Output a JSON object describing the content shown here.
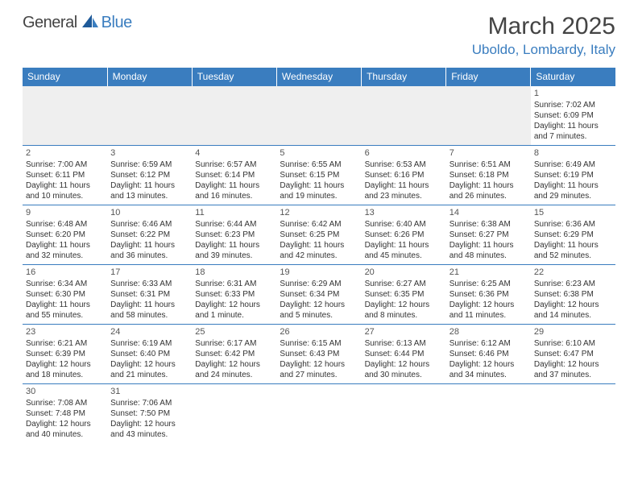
{
  "logo": {
    "general": "General",
    "blue": "Blue"
  },
  "title": "March 2025",
  "location": "Uboldo, Lombardy, Italy",
  "dayHeaders": [
    "Sunday",
    "Monday",
    "Tuesday",
    "Wednesday",
    "Thursday",
    "Friday",
    "Saturday"
  ],
  "colors": {
    "headerBg": "#3a7dbf",
    "headerText": "#ffffff",
    "accent": "#3a7dbf",
    "blankBg": "#efefef"
  },
  "weeks": [
    [
      null,
      null,
      null,
      null,
      null,
      null,
      {
        "n": "1",
        "sr": "Sunrise: 7:02 AM",
        "ss": "Sunset: 6:09 PM",
        "d1": "Daylight: 11 hours",
        "d2": "and 7 minutes."
      }
    ],
    [
      {
        "n": "2",
        "sr": "Sunrise: 7:00 AM",
        "ss": "Sunset: 6:11 PM",
        "d1": "Daylight: 11 hours",
        "d2": "and 10 minutes."
      },
      {
        "n": "3",
        "sr": "Sunrise: 6:59 AM",
        "ss": "Sunset: 6:12 PM",
        "d1": "Daylight: 11 hours",
        "d2": "and 13 minutes."
      },
      {
        "n": "4",
        "sr": "Sunrise: 6:57 AM",
        "ss": "Sunset: 6:14 PM",
        "d1": "Daylight: 11 hours",
        "d2": "and 16 minutes."
      },
      {
        "n": "5",
        "sr": "Sunrise: 6:55 AM",
        "ss": "Sunset: 6:15 PM",
        "d1": "Daylight: 11 hours",
        "d2": "and 19 minutes."
      },
      {
        "n": "6",
        "sr": "Sunrise: 6:53 AM",
        "ss": "Sunset: 6:16 PM",
        "d1": "Daylight: 11 hours",
        "d2": "and 23 minutes."
      },
      {
        "n": "7",
        "sr": "Sunrise: 6:51 AM",
        "ss": "Sunset: 6:18 PM",
        "d1": "Daylight: 11 hours",
        "d2": "and 26 minutes."
      },
      {
        "n": "8",
        "sr": "Sunrise: 6:49 AM",
        "ss": "Sunset: 6:19 PM",
        "d1": "Daylight: 11 hours",
        "d2": "and 29 minutes."
      }
    ],
    [
      {
        "n": "9",
        "sr": "Sunrise: 6:48 AM",
        "ss": "Sunset: 6:20 PM",
        "d1": "Daylight: 11 hours",
        "d2": "and 32 minutes."
      },
      {
        "n": "10",
        "sr": "Sunrise: 6:46 AM",
        "ss": "Sunset: 6:22 PM",
        "d1": "Daylight: 11 hours",
        "d2": "and 36 minutes."
      },
      {
        "n": "11",
        "sr": "Sunrise: 6:44 AM",
        "ss": "Sunset: 6:23 PM",
        "d1": "Daylight: 11 hours",
        "d2": "and 39 minutes."
      },
      {
        "n": "12",
        "sr": "Sunrise: 6:42 AM",
        "ss": "Sunset: 6:25 PM",
        "d1": "Daylight: 11 hours",
        "d2": "and 42 minutes."
      },
      {
        "n": "13",
        "sr": "Sunrise: 6:40 AM",
        "ss": "Sunset: 6:26 PM",
        "d1": "Daylight: 11 hours",
        "d2": "and 45 minutes."
      },
      {
        "n": "14",
        "sr": "Sunrise: 6:38 AM",
        "ss": "Sunset: 6:27 PM",
        "d1": "Daylight: 11 hours",
        "d2": "and 48 minutes."
      },
      {
        "n": "15",
        "sr": "Sunrise: 6:36 AM",
        "ss": "Sunset: 6:29 PM",
        "d1": "Daylight: 11 hours",
        "d2": "and 52 minutes."
      }
    ],
    [
      {
        "n": "16",
        "sr": "Sunrise: 6:34 AM",
        "ss": "Sunset: 6:30 PM",
        "d1": "Daylight: 11 hours",
        "d2": "and 55 minutes."
      },
      {
        "n": "17",
        "sr": "Sunrise: 6:33 AM",
        "ss": "Sunset: 6:31 PM",
        "d1": "Daylight: 11 hours",
        "d2": "and 58 minutes."
      },
      {
        "n": "18",
        "sr": "Sunrise: 6:31 AM",
        "ss": "Sunset: 6:33 PM",
        "d1": "Daylight: 12 hours",
        "d2": "and 1 minute."
      },
      {
        "n": "19",
        "sr": "Sunrise: 6:29 AM",
        "ss": "Sunset: 6:34 PM",
        "d1": "Daylight: 12 hours",
        "d2": "and 5 minutes."
      },
      {
        "n": "20",
        "sr": "Sunrise: 6:27 AM",
        "ss": "Sunset: 6:35 PM",
        "d1": "Daylight: 12 hours",
        "d2": "and 8 minutes."
      },
      {
        "n": "21",
        "sr": "Sunrise: 6:25 AM",
        "ss": "Sunset: 6:36 PM",
        "d1": "Daylight: 12 hours",
        "d2": "and 11 minutes."
      },
      {
        "n": "22",
        "sr": "Sunrise: 6:23 AM",
        "ss": "Sunset: 6:38 PM",
        "d1": "Daylight: 12 hours",
        "d2": "and 14 minutes."
      }
    ],
    [
      {
        "n": "23",
        "sr": "Sunrise: 6:21 AM",
        "ss": "Sunset: 6:39 PM",
        "d1": "Daylight: 12 hours",
        "d2": "and 18 minutes."
      },
      {
        "n": "24",
        "sr": "Sunrise: 6:19 AM",
        "ss": "Sunset: 6:40 PM",
        "d1": "Daylight: 12 hours",
        "d2": "and 21 minutes."
      },
      {
        "n": "25",
        "sr": "Sunrise: 6:17 AM",
        "ss": "Sunset: 6:42 PM",
        "d1": "Daylight: 12 hours",
        "d2": "and 24 minutes."
      },
      {
        "n": "26",
        "sr": "Sunrise: 6:15 AM",
        "ss": "Sunset: 6:43 PM",
        "d1": "Daylight: 12 hours",
        "d2": "and 27 minutes."
      },
      {
        "n": "27",
        "sr": "Sunrise: 6:13 AM",
        "ss": "Sunset: 6:44 PM",
        "d1": "Daylight: 12 hours",
        "d2": "and 30 minutes."
      },
      {
        "n": "28",
        "sr": "Sunrise: 6:12 AM",
        "ss": "Sunset: 6:46 PM",
        "d1": "Daylight: 12 hours",
        "d2": "and 34 minutes."
      },
      {
        "n": "29",
        "sr": "Sunrise: 6:10 AM",
        "ss": "Sunset: 6:47 PM",
        "d1": "Daylight: 12 hours",
        "d2": "and 37 minutes."
      }
    ],
    [
      {
        "n": "30",
        "sr": "Sunrise: 7:08 AM",
        "ss": "Sunset: 7:48 PM",
        "d1": "Daylight: 12 hours",
        "d2": "and 40 minutes."
      },
      {
        "n": "31",
        "sr": "Sunrise: 7:06 AM",
        "ss": "Sunset: 7:50 PM",
        "d1": "Daylight: 12 hours",
        "d2": "and 43 minutes."
      },
      null,
      null,
      null,
      null,
      null
    ]
  ]
}
